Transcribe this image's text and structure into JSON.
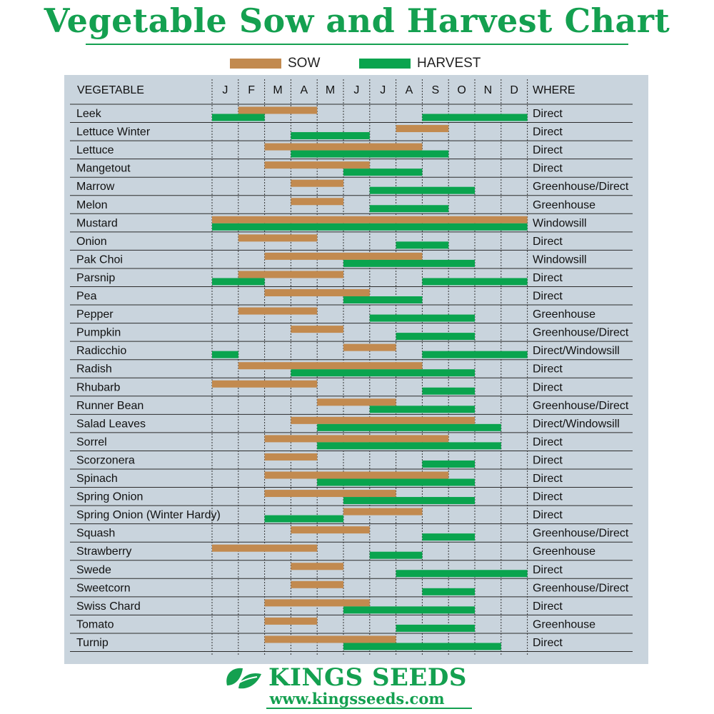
{
  "title": "Vegetable Sow and Harvest Chart",
  "legend": {
    "sow_label": "SOW",
    "harvest_label": "HARVEST"
  },
  "colors": {
    "sow": "#c28a4f",
    "harvest": "#0aa44e",
    "panel": "#c9d4dd",
    "brand": "#14a050"
  },
  "headers": {
    "vegetable": "VEGETABLE",
    "where": "WHERE"
  },
  "footer": {
    "brand": "KINGS SEEDS",
    "url": "www.kingsseeds.com",
    "logo_icon": "leaf-icon"
  },
  "chart_data": {
    "type": "gantt",
    "title": "Vegetable Sow and Harvest Chart",
    "months": [
      "J",
      "F",
      "M",
      "A",
      "M",
      "J",
      "J",
      "A",
      "S",
      "O",
      "N",
      "D"
    ],
    "series": [
      {
        "name": "SOW",
        "color": "#c28a4f"
      },
      {
        "name": "HARVEST",
        "color": "#0aa44e"
      }
    ],
    "rows": [
      {
        "vegetable": "Leek",
        "where": "Direct",
        "sow": [
          [
            2,
            4
          ]
        ],
        "harvest": [
          [
            1,
            2
          ],
          [
            9,
            12
          ]
        ]
      },
      {
        "vegetable": "Lettuce Winter",
        "where": "Direct",
        "sow": [
          [
            8,
            9
          ]
        ],
        "harvest": [
          [
            4,
            6
          ]
        ]
      },
      {
        "vegetable": "Lettuce",
        "where": "Direct",
        "sow": [
          [
            3,
            8
          ]
        ],
        "harvest": [
          [
            4,
            9
          ]
        ]
      },
      {
        "vegetable": "Mangetout",
        "where": "Direct",
        "sow": [
          [
            3,
            6
          ]
        ],
        "harvest": [
          [
            6,
            8
          ]
        ]
      },
      {
        "vegetable": "Marrow",
        "where": "Greenhouse/Direct",
        "sow": [
          [
            4,
            5
          ]
        ],
        "harvest": [
          [
            7,
            10
          ]
        ]
      },
      {
        "vegetable": "Melon",
        "where": "Greenhouse",
        "sow": [
          [
            4,
            5
          ]
        ],
        "harvest": [
          [
            7,
            9
          ]
        ]
      },
      {
        "vegetable": "Mustard",
        "where": "Windowsill",
        "sow": [
          [
            1,
            12
          ]
        ],
        "harvest": [
          [
            1,
            12
          ]
        ]
      },
      {
        "vegetable": "Onion",
        "where": "Direct",
        "sow": [
          [
            2,
            4
          ]
        ],
        "harvest": [
          [
            8,
            9
          ]
        ]
      },
      {
        "vegetable": "Pak Choi",
        "where": "Windowsill",
        "sow": [
          [
            3,
            8
          ]
        ],
        "harvest": [
          [
            6,
            10
          ]
        ]
      },
      {
        "vegetable": "Parsnip",
        "where": "Direct",
        "sow": [
          [
            2,
            5
          ]
        ],
        "harvest": [
          [
            1,
            2
          ],
          [
            9,
            12
          ]
        ]
      },
      {
        "vegetable": "Pea",
        "where": "Direct",
        "sow": [
          [
            3,
            6
          ]
        ],
        "harvest": [
          [
            6,
            8
          ]
        ]
      },
      {
        "vegetable": "Pepper",
        "where": "Greenhouse",
        "sow": [
          [
            2,
            4
          ]
        ],
        "harvest": [
          [
            7,
            10
          ]
        ]
      },
      {
        "vegetable": "Pumpkin",
        "where": "Greenhouse/Direct",
        "sow": [
          [
            4,
            5
          ]
        ],
        "harvest": [
          [
            8,
            10
          ]
        ]
      },
      {
        "vegetable": "Radicchio",
        "where": "Direct/Windowsill",
        "sow": [
          [
            6,
            7
          ]
        ],
        "harvest": [
          [
            1,
            1
          ],
          [
            9,
            12
          ]
        ]
      },
      {
        "vegetable": "Radish",
        "where": "Direct",
        "sow": [
          [
            2,
            8
          ]
        ],
        "harvest": [
          [
            4,
            10
          ]
        ]
      },
      {
        "vegetable": "Rhubarb",
        "where": "Direct",
        "sow": [
          [
            1,
            4
          ]
        ],
        "harvest": [
          [
            9,
            10
          ]
        ]
      },
      {
        "vegetable": "Runner Bean",
        "where": "Greenhouse/Direct",
        "sow": [
          [
            5,
            7
          ]
        ],
        "harvest": [
          [
            7,
            10
          ]
        ]
      },
      {
        "vegetable": "Salad Leaves",
        "where": "Direct/Windowsill",
        "sow": [
          [
            4,
            10
          ]
        ],
        "harvest": [
          [
            5,
            11
          ]
        ]
      },
      {
        "vegetable": "Sorrel",
        "where": "Direct",
        "sow": [
          [
            3,
            9
          ]
        ],
        "harvest": [
          [
            5,
            11
          ]
        ]
      },
      {
        "vegetable": "Scorzonera",
        "where": "Direct",
        "sow": [
          [
            3,
            4
          ]
        ],
        "harvest": [
          [
            9,
            10
          ]
        ]
      },
      {
        "vegetable": "Spinach",
        "where": "Direct",
        "sow": [
          [
            3,
            9
          ]
        ],
        "harvest": [
          [
            5,
            10
          ]
        ]
      },
      {
        "vegetable": "Spring Onion",
        "where": "Direct",
        "sow": [
          [
            3,
            7
          ]
        ],
        "harvest": [
          [
            6,
            10
          ]
        ]
      },
      {
        "vegetable": "Spring Onion (Winter Hardy)",
        "where": "Direct",
        "sow": [
          [
            6,
            8
          ]
        ],
        "harvest": [
          [
            3,
            5
          ]
        ]
      },
      {
        "vegetable": "Squash",
        "where": "Greenhouse/Direct",
        "sow": [
          [
            4,
            6
          ]
        ],
        "harvest": [
          [
            9,
            10
          ]
        ]
      },
      {
        "vegetable": "Strawberry",
        "where": "Greenhouse",
        "sow": [
          [
            1,
            4
          ]
        ],
        "harvest": [
          [
            7,
            8
          ]
        ]
      },
      {
        "vegetable": "Swede",
        "where": "Direct",
        "sow": [
          [
            4,
            5
          ]
        ],
        "harvest": [
          [
            8,
            12
          ]
        ]
      },
      {
        "vegetable": "Sweetcorn",
        "where": "Greenhouse/Direct",
        "sow": [
          [
            4,
            5
          ]
        ],
        "harvest": [
          [
            9,
            10
          ]
        ]
      },
      {
        "vegetable": "Swiss Chard",
        "where": "Direct",
        "sow": [
          [
            3,
            6
          ]
        ],
        "harvest": [
          [
            6,
            10
          ]
        ]
      },
      {
        "vegetable": "Tomato",
        "where": "Greenhouse",
        "sow": [
          [
            3,
            4
          ]
        ],
        "harvest": [
          [
            8,
            10
          ]
        ]
      },
      {
        "vegetable": "Turnip",
        "where": "Direct",
        "sow": [
          [
            3,
            7
          ]
        ],
        "harvest": [
          [
            6,
            11
          ]
        ]
      }
    ]
  }
}
